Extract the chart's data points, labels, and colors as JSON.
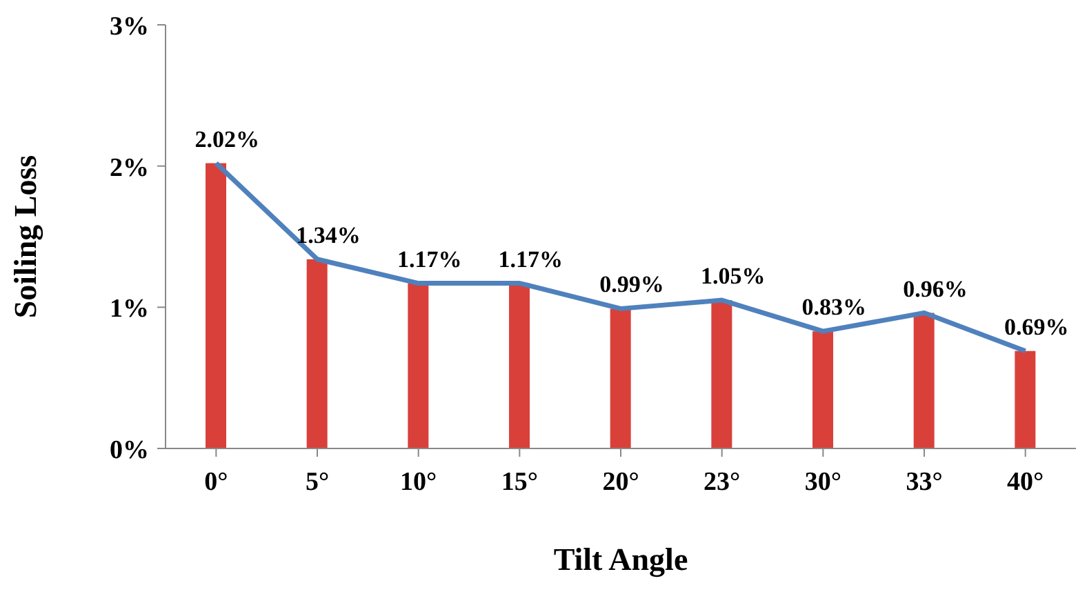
{
  "chart_data": {
    "type": "bar",
    "xlabel": "Tilt Angle",
    "ylabel": "Soiling Loss",
    "categories": [
      "0°",
      "5°",
      "10°",
      "15°",
      "20°",
      "23°",
      "30°",
      "33°",
      "40°"
    ],
    "series": [
      {
        "color": "#d9403a",
        "values": [
          2.02,
          1.34,
          1.17,
          1.17,
          0.99,
          1.05,
          0.83,
          0.96,
          0.69
        ]
      },
      {
        "type": "line",
        "color": "#4f81bd",
        "marker": "none",
        "values": [
          2.02,
          1.34,
          1.17,
          1.17,
          0.99,
          1.05,
          0.83,
          0.96,
          0.69
        ],
        "value_labels": [
          "2.02%",
          "1.34%",
          "1.17%",
          "1.17%",
          "0.99%",
          "1.05%",
          "0.83%",
          "0.96%",
          "0.69%"
        ]
      }
    ],
    "ylim": [
      0,
      3
    ],
    "yticks": [
      {
        "value": 0,
        "label": "0%"
      },
      {
        "value": 1,
        "label": "1%"
      },
      {
        "value": 2,
        "label": "2%"
      },
      {
        "value": 3,
        "label": "3%"
      }
    ],
    "grid": false,
    "legend": false
  }
}
